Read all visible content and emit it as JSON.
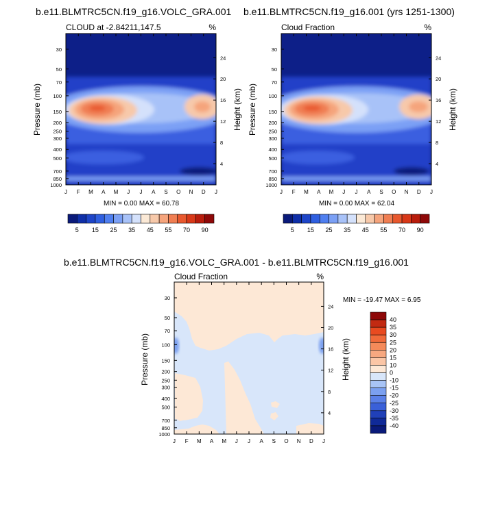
{
  "chart_data": {
    "type": "heatmap",
    "panels": [
      {
        "id": "top-left",
        "title": "b.e11.BLMTRC5CN.f19_g16.VOLC_GRA.001",
        "left_string": "CLOUD at -2.84211,147.5",
        "right_string": "%",
        "ylabel": "Pressure (mb)",
        "ylabel_right": "Height (km)",
        "minmax": "MIN =  0.00 MAX = 60.78"
      },
      {
        "id": "top-right",
        "title": "b.e11.BLMTRC5CN.f19_g16.001 (yrs 1251-1300)",
        "left_string": "Cloud Fraction",
        "right_string": "%",
        "ylabel": "Pressure (mb)",
        "ylabel_right": "Height (km)",
        "minmax": "MIN =  0.00 MAX = 62.04"
      },
      {
        "id": "difference",
        "title": "b.e11.BLMTRC5CN.f19_g16.VOLC_GRA.001 - b.e11.BLMTRC5CN.f19_g16.001",
        "left_string": "Cloud Fraction",
        "right_string": "%",
        "ylabel": "Pressure (mb)",
        "ylabel_right": "Height (km)",
        "minmax": "MIN = -19.47 MAX =  6.95"
      }
    ],
    "x_ticks": [
      "J",
      "F",
      "M",
      "A",
      "M",
      "J",
      "J",
      "A",
      "S",
      "O",
      "N",
      "D",
      "J"
    ],
    "pressure_ticks": [
      30,
      50,
      70,
      100,
      150,
      200,
      250,
      300,
      400,
      500,
      700,
      850,
      1000
    ],
    "pressure_range": [
      20,
      1000
    ],
    "height_ticks": [
      4,
      8,
      12,
      16,
      20,
      24
    ],
    "absolute_colorbar": {
      "labels": [
        "5",
        "15",
        "25",
        "35",
        "45",
        "55",
        "70",
        "90"
      ],
      "colors": [
        "#0a1a7a",
        "#0f2fa8",
        "#1e45c8",
        "#2f5fe0",
        "#4f7ff0",
        "#7ba0f5",
        "#a8c2f8",
        "#d4e1fb",
        "#fbe9d6",
        "#f7c9aa",
        "#f5a47c",
        "#f07e52",
        "#e8582e",
        "#d83818",
        "#b81c0c",
        "#8e0808"
      ]
    },
    "difference_colorbar": {
      "labels": [
        "40",
        "35",
        "30",
        "25",
        "20",
        "15",
        "10",
        "0",
        "-10",
        "-15",
        "-20",
        "-25",
        "-30",
        "-35",
        "-40"
      ],
      "colors": [
        "#8e0808",
        "#c22a12",
        "#e84a20",
        "#f06a3a",
        "#f48a5a",
        "#f7a880",
        "#fbc6a6",
        "#fde8d6",
        "#d8e6fa",
        "#a8c4f6",
        "#7ba0f0",
        "#5a80e8",
        "#3a60d8",
        "#2040b8",
        "#102a98",
        "#0a1a7a"
      ]
    }
  }
}
